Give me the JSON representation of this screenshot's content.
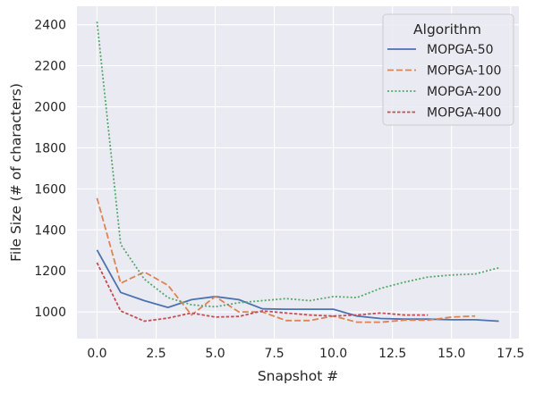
{
  "chart_data": {
    "type": "line",
    "xlabel": "Snapshot #",
    "ylabel": "File Size (# of characters)",
    "xlim": [
      -0.85,
      17.85
    ],
    "ylim": [
      870,
      2490
    ],
    "xticks": [
      0.0,
      2.5,
      5.0,
      7.5,
      10.0,
      12.5,
      15.0,
      17.5
    ],
    "xtick_labels": [
      "0.0",
      "2.5",
      "5.0",
      "7.5",
      "10.0",
      "12.5",
      "15.0",
      "17.5"
    ],
    "yticks": [
      1000,
      1200,
      1400,
      1600,
      1800,
      2000,
      2200,
      2400
    ],
    "ytick_labels": [
      "1000",
      "1200",
      "1400",
      "1600",
      "1800",
      "2000",
      "2200",
      "2400"
    ],
    "grid": true,
    "legend": {
      "title": "Algorithm",
      "placement": "top-right"
    },
    "series": [
      {
        "name": "MOPGA-50",
        "color": "#4c72b0",
        "dash": "solid",
        "x": [
          0,
          1,
          2,
          3,
          4,
          5,
          6,
          7,
          8,
          9,
          10,
          11,
          12,
          13,
          14,
          15,
          16,
          17
        ],
        "y": [
          1302,
          1095,
          1055,
          1022,
          1060,
          1075,
          1060,
          1015,
          1013,
          1013,
          1013,
          980,
          968,
          965,
          965,
          962,
          962,
          955
        ]
      },
      {
        "name": "MOPGA-100",
        "color": "#dd8452",
        "dash": "dashed",
        "x": [
          0,
          1,
          2,
          3,
          4,
          5,
          6,
          7,
          8,
          9,
          10,
          11,
          12,
          13,
          14,
          15,
          16
        ],
        "y": [
          1555,
          1140,
          1195,
          1130,
          985,
          1075,
          1000,
          1000,
          958,
          958,
          980,
          950,
          950,
          960,
          960,
          975,
          980
        ]
      },
      {
        "name": "MOPGA-200",
        "color": "#55a868",
        "dash": "dotted",
        "x": [
          0,
          1,
          2,
          3,
          4,
          5,
          6,
          7,
          8,
          9,
          10,
          11,
          12,
          13,
          14,
          15,
          16,
          17
        ],
        "y": [
          2415,
          1330,
          1160,
          1070,
          1035,
          1025,
          1045,
          1055,
          1065,
          1055,
          1075,
          1070,
          1115,
          1145,
          1170,
          1180,
          1185,
          1215
        ]
      },
      {
        "name": "MOPGA-400",
        "color": "#c44e52",
        "dash": "short-dashed",
        "x": [
          0,
          1,
          2,
          3,
          4,
          5,
          6,
          7,
          8,
          9,
          10,
          11,
          12,
          13,
          14
        ],
        "y": [
          1240,
          1005,
          955,
          970,
          995,
          975,
          978,
          1005,
          995,
          985,
          980,
          985,
          995,
          985,
          985
        ]
      }
    ]
  }
}
